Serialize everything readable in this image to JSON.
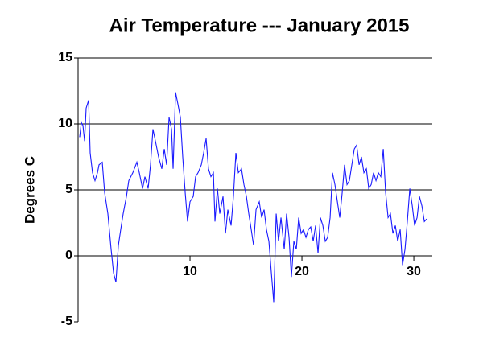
{
  "chart_data": {
    "type": "line",
    "title": "Air Temperature --- January 2015",
    "y_label": "Degrees C",
    "x": [
      0.14,
      0.29,
      0.43,
      0.58,
      0.72,
      0.94,
      1.08,
      1.29,
      1.51,
      1.73,
      1.87,
      2.16,
      2.37,
      2.66,
      2.95,
      3.17,
      3.38,
      3.6,
      3.81,
      4.03,
      4.32,
      4.53,
      4.89,
      5.25,
      5.47,
      5.76,
      5.97,
      6.26,
      6.47,
      6.69,
      6.91,
      7.19,
      7.48,
      7.7,
      7.91,
      8.13,
      8.35,
      8.49,
      8.71,
      8.92,
      9.14,
      9.35,
      9.57,
      9.78,
      10,
      10.29,
      10.5,
      10.72,
      11.01,
      11.22,
      11.44,
      11.65,
      11.87,
      12.09,
      12.23,
      12.45,
      12.66,
      12.95,
      13.17,
      13.38,
      13.67,
      13.88,
      14.1,
      14.32,
      14.6,
      14.82,
      15.04,
      15.25,
      15.47,
      15.68,
      15.9,
      16.19,
      16.4,
      16.62,
      16.83,
      17.05,
      17.27,
      17.48,
      17.7,
      17.91,
      18.13,
      18.42,
      18.63,
      18.85,
      19.06,
      19.28,
      19.5,
      19.71,
      19.93,
      20.14,
      20.36,
      20.58,
      20.79,
      21.01,
      21.22,
      21.44,
      21.65,
      21.87,
      22.09,
      22.3,
      22.52,
      22.73,
      22.95,
      23.17,
      23.38,
      23.6,
      23.81,
      24.03,
      24.24,
      24.46,
      24.68,
      24.89,
      25.11,
      25.32,
      25.54,
      25.76,
      25.97,
      26.19,
      26.4,
      26.62,
      26.83,
      27.05,
      27.27,
      27.48,
      27.7,
      27.91,
      28.13,
      28.35,
      28.56,
      28.78,
      28.99,
      29.21,
      29.42,
      29.64,
      29.86,
      30.07,
      30.29,
      30.5,
      30.72,
      30.94,
      31.15
    ],
    "series": [
      {
        "name": "Air Temperature",
        "color": "#1a1aff",
        "values": [
          9.0,
          10.1,
          9.9,
          8.7,
          11.2,
          11.8,
          7.8,
          6.3,
          5.7,
          6.3,
          6.9,
          7.1,
          4.8,
          3.2,
          0.5,
          -1.3,
          -2.0,
          0.8,
          2.0,
          3.2,
          4.5,
          5.7,
          6.3,
          7.1,
          6.3,
          5.1,
          6.0,
          5.1,
          6.9,
          9.6,
          8.7,
          7.5,
          6.6,
          8.1,
          6.9,
          10.5,
          9.6,
          6.6,
          12.4,
          11.5,
          10.5,
          7.5,
          4.8,
          2.6,
          4.1,
          4.5,
          6.0,
          6.3,
          6.9,
          7.8,
          8.9,
          6.6,
          6.0,
          6.3,
          2.6,
          5.1,
          3.2,
          4.5,
          1.7,
          3.5,
          2.3,
          4.5,
          7.8,
          6.3,
          6.6,
          5.4,
          4.5,
          3.2,
          2.0,
          0.8,
          3.5,
          4.1,
          2.9,
          3.5,
          2.0,
          1.1,
          -1.3,
          -3.5,
          3.2,
          1.1,
          2.9,
          0.5,
          3.2,
          1.4,
          -1.6,
          1.1,
          0.5,
          2.9,
          1.7,
          2.0,
          1.4,
          2.0,
          2.2,
          1.1,
          2.3,
          0.2,
          2.9,
          2.3,
          1.1,
          1.4,
          2.9,
          6.3,
          5.4,
          4.1,
          2.9,
          4.8,
          6.9,
          5.4,
          5.7,
          6.9,
          8.1,
          8.4,
          6.9,
          7.5,
          6.3,
          6.6,
          5.1,
          5.4,
          6.3,
          5.7,
          6.3,
          6.0,
          8.1,
          4.8,
          2.9,
          3.2,
          1.7,
          2.3,
          1.1,
          2.0,
          -0.7,
          0.5,
          2.6,
          5.1,
          3.8,
          2.3,
          2.9,
          4.5,
          3.8,
          2.6,
          2.8
        ]
      }
    ],
    "xlim": [
      0,
      31.65
    ],
    "xticks": [
      10,
      20,
      30
    ],
    "ylim": [
      -5,
      15
    ],
    "yticks": [
      15,
      10,
      5,
      0,
      -5
    ],
    "grid": true
  }
}
